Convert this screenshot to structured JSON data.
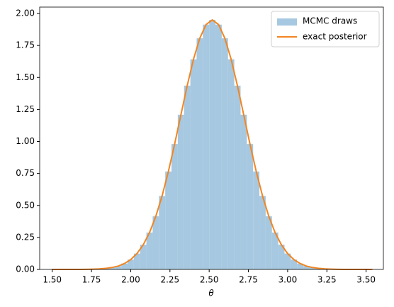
{
  "chart_data": {
    "type": "histogram",
    "x_label": "θ",
    "bins": [
      1.5,
      1.54,
      1.58,
      1.62,
      1.66,
      1.7,
      1.74,
      1.78,
      1.82,
      1.86,
      1.9,
      1.94,
      1.98,
      2.02,
      2.06,
      2.1,
      2.14,
      2.18,
      2.22,
      2.26,
      2.3,
      2.34,
      2.38,
      2.42,
      2.46,
      2.5,
      2.54,
      2.58,
      2.62,
      2.66,
      2.7,
      2.74,
      2.78,
      2.82,
      2.86,
      2.9,
      2.94,
      2.98,
      3.02,
      3.06,
      3.1,
      3.14,
      3.18,
      3.22,
      3.26,
      3.3,
      3.34,
      3.38,
      3.42,
      3.46,
      3.5,
      3.54
    ],
    "series": [
      {
        "name": "MCMC draws",
        "type": "histogram",
        "color": "#a6c8e0",
        "values": [
          0,
          0,
          0,
          0,
          0,
          0.001,
          0.002,
          0.004,
          0.008,
          0.015,
          0.026,
          0.046,
          0.077,
          0.124,
          0.193,
          0.288,
          0.415,
          0.574,
          0.765,
          0.98,
          1.209,
          1.436,
          1.642,
          1.806,
          1.913,
          1.95,
          1.913,
          1.806,
          1.642,
          1.436,
          1.209,
          0.98,
          0.765,
          0.574,
          0.415,
          0.288,
          0.193,
          0.124,
          0.077,
          0.046,
          0.026,
          0.015,
          0.008,
          0.004,
          0.002,
          0.001,
          0,
          0,
          0,
          0,
          0
        ]
      },
      {
        "name": "exact posterior",
        "type": "line",
        "color": "#f28522",
        "x": [
          1.5,
          1.52,
          1.56,
          1.6,
          1.64,
          1.68,
          1.72,
          1.76,
          1.8,
          1.84,
          1.88,
          1.92,
          1.96,
          2.0,
          2.04,
          2.08,
          2.12,
          2.16,
          2.2,
          2.24,
          2.28,
          2.32,
          2.36,
          2.4,
          2.44,
          2.48,
          2.52,
          2.56,
          2.6,
          2.64,
          2.68,
          2.72,
          2.76,
          2.8,
          2.84,
          2.88,
          2.92,
          2.96,
          3.0,
          3.04,
          3.08,
          3.12,
          3.16,
          3.2,
          3.24,
          3.28,
          3.32,
          3.36,
          3.4,
          3.44,
          3.48,
          3.52,
          3.54
        ],
        "values": [
          0,
          0,
          0,
          0,
          0,
          0,
          0.001,
          0.002,
          0.004,
          0.008,
          0.015,
          0.026,
          0.046,
          0.077,
          0.124,
          0.193,
          0.288,
          0.415,
          0.574,
          0.765,
          0.98,
          1.209,
          1.436,
          1.642,
          1.806,
          1.913,
          1.95,
          1.913,
          1.806,
          1.642,
          1.436,
          1.209,
          0.98,
          0.765,
          0.574,
          0.415,
          0.288,
          0.193,
          0.124,
          0.077,
          0.046,
          0.026,
          0.015,
          0.008,
          0.004,
          0.002,
          0.001,
          0,
          0,
          0,
          0,
          0,
          0
        ]
      }
    ],
    "xlim": [
      1.42,
      3.61
    ],
    "ylim": [
      0,
      2.05
    ],
    "xticks": [
      {
        "value": 1.5,
        "label": "1.50"
      },
      {
        "value": 1.75,
        "label": "1.75"
      },
      {
        "value": 2,
        "label": "2.00"
      },
      {
        "value": 2.25,
        "label": "2.25"
      },
      {
        "value": 2.5,
        "label": "2.50"
      },
      {
        "value": 2.75,
        "label": "2.75"
      },
      {
        "value": 3,
        "label": "3.00"
      },
      {
        "value": 3.25,
        "label": "3.25"
      },
      {
        "value": 3.5,
        "label": "3.50"
      }
    ],
    "yticks": [
      {
        "value": 0,
        "label": "0.00"
      },
      {
        "value": 0.25,
        "label": "0.25"
      },
      {
        "value": 0.5,
        "label": "0.50"
      },
      {
        "value": 0.75,
        "label": "0.75"
      },
      {
        "value": 1,
        "label": "1.00"
      },
      {
        "value": 1.25,
        "label": "1.25"
      },
      {
        "value": 1.5,
        "label": "1.50"
      },
      {
        "value": 1.75,
        "label": "1.75"
      },
      {
        "value": 2,
        "label": "2.00"
      }
    ],
    "legend": "upper right"
  }
}
